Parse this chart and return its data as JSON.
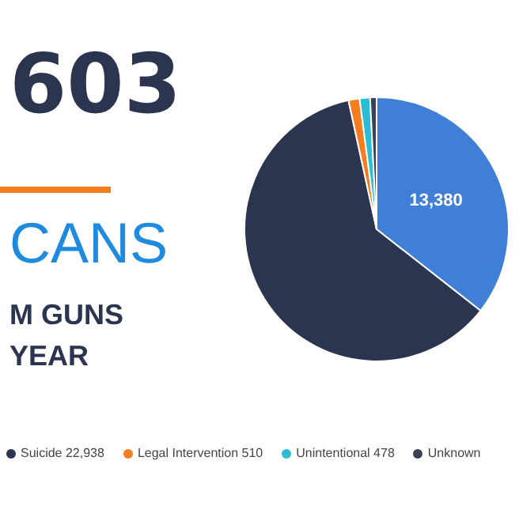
{
  "chart_data": {
    "type": "pie",
    "title": "603",
    "subtitle": "CANS",
    "annotations": [
      "M GUNS",
      "YEAR"
    ],
    "categories": [
      null,
      "Suicide",
      "Legal Intervention",
      "Unintentional",
      "Unknown"
    ],
    "values": [
      13380,
      22938,
      510,
      478,
      297
    ],
    "value_labels": [
      "13,380",
      "22,938",
      "510",
      "478",
      null
    ],
    "colors": [
      "#3f7fd6",
      "#2b3550",
      "#f57c1f",
      "#2bbcd4",
      "#3b4252"
    ],
    "legend": "bottom"
  }
}
